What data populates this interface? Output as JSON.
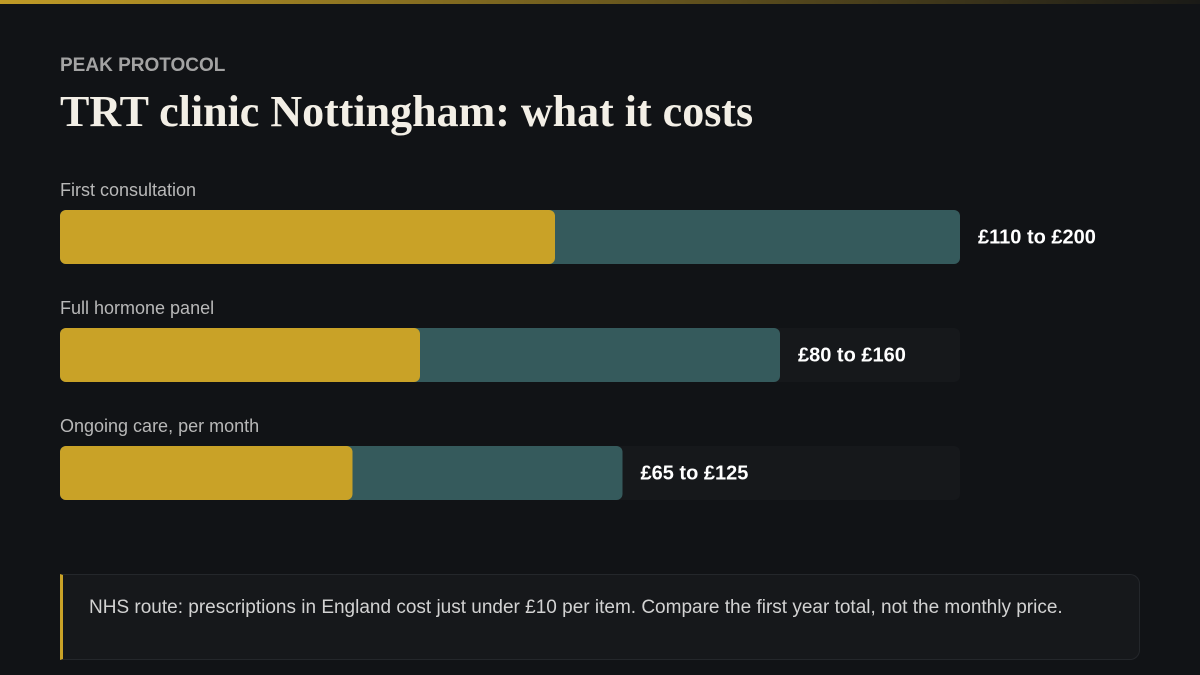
{
  "chart_data": {
    "type": "range-bar",
    "kicker": "PEAK PROTOCOL",
    "title": "TRT clinic Nottingham: what it costs",
    "categories": [
      "First consultation",
      "Full hormone panel",
      "Ongoing care, per month"
    ],
    "low": [
      110,
      80,
      65
    ],
    "high": [
      200,
      160,
      125
    ],
    "value_labels": [
      "£110 to £200",
      "£80 to £160",
      "£65 to £125"
    ],
    "low_color": "#c9a227",
    "high_color": "#355a5c",
    "xlim": [
      0,
      200
    ],
    "note": "NHS route: prescriptions in England cost just under £10 per item. Compare the first year total, not the monthly price."
  }
}
